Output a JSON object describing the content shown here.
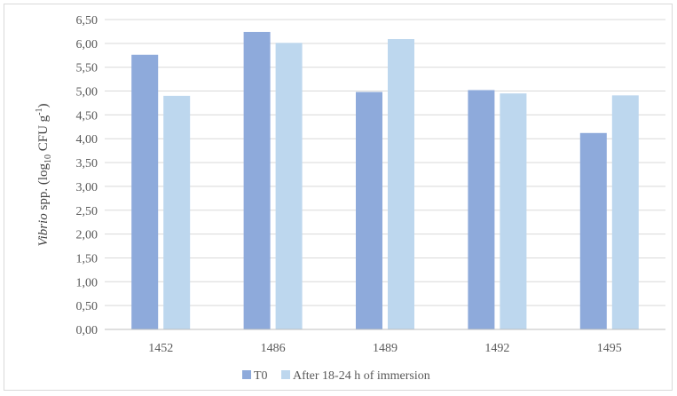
{
  "chart_data": {
    "type": "bar",
    "categories": [
      "1452",
      "1486",
      "1489",
      "1492",
      "1495"
    ],
    "series": [
      {
        "name": "T0",
        "values": [
          5.76,
          6.24,
          4.98,
          5.02,
          4.12
        ],
        "color": "#8eaadb"
      },
      {
        "name": "After 18-24 h of immersion",
        "values": [
          4.9,
          6.01,
          6.09,
          4.95,
          4.91
        ],
        "color": "#bdd7ee"
      }
    ],
    "ylim": [
      0,
      6.5
    ],
    "yticks": [
      "0,00",
      "0,50",
      "1,00",
      "1,50",
      "2,00",
      "2,50",
      "3,00",
      "3,50",
      "4,00",
      "4,50",
      "5,00",
      "5,50",
      "6,00",
      "6,50"
    ],
    "ylabel": {
      "italic": "Vibrio",
      "rest": " spp. (log",
      "sub": "10",
      "rest2": " CFU g",
      "sup": "-1",
      "close": ")"
    },
    "xlabel": "",
    "title": "",
    "grid": true,
    "legend": "bottom-center"
  }
}
